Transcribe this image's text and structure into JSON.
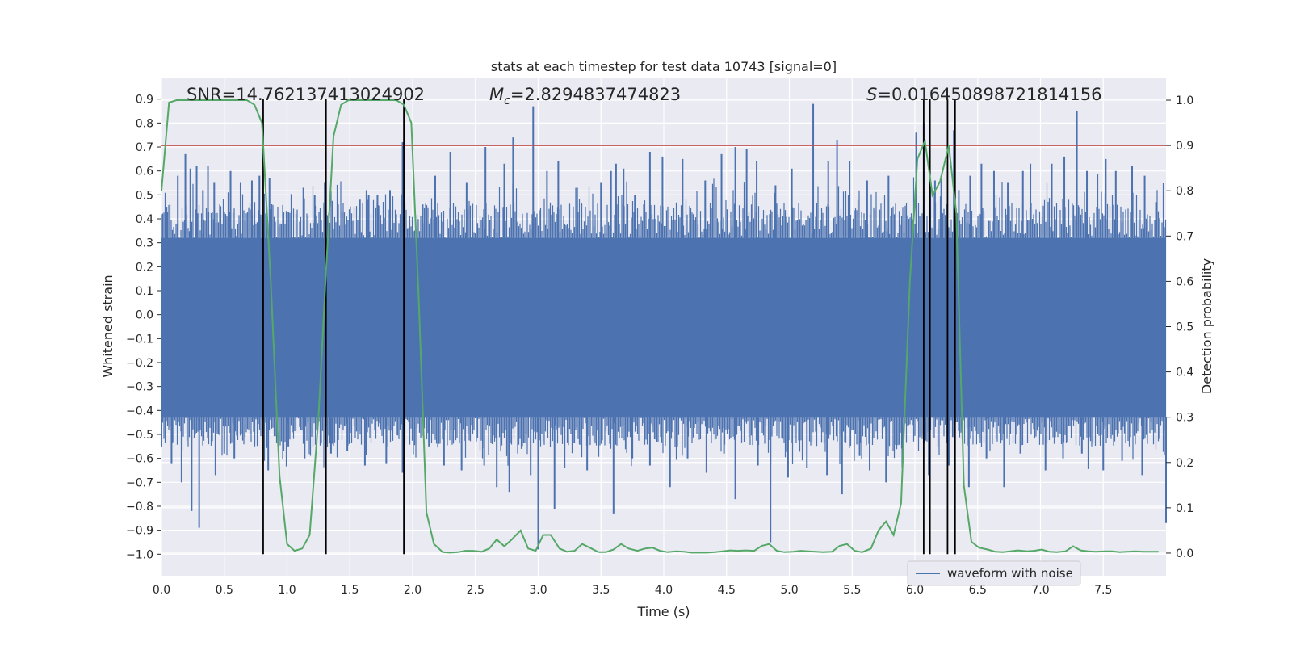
{
  "chart_data": {
    "type": "line",
    "title": "stats at each timestep for test data 10743 [signal=0]",
    "xlabel": "Time (s)",
    "ylabel": "Whitened strain",
    "y2label": "Detection probability",
    "xlim": [
      0.0,
      8.0
    ],
    "ylim": [
      -1.09,
      0.99
    ],
    "y2lim": [
      -0.05,
      1.05
    ],
    "xticks": [
      0.0,
      0.5,
      1.0,
      1.5,
      2.0,
      2.5,
      3.0,
      3.5,
      4.0,
      4.5,
      5.0,
      5.5,
      6.0,
      6.5,
      7.0,
      7.5
    ],
    "xtick_labels": [
      "0.0",
      "0.5",
      "1.0",
      "1.5",
      "2.0",
      "2.5",
      "3.0",
      "3.5",
      "4.0",
      "4.5",
      "5.0",
      "5.5",
      "6.0",
      "6.5",
      "7.0",
      "7.5"
    ],
    "yticks": [
      -1.0,
      -0.9,
      -0.8,
      -0.7,
      -0.6,
      -0.5,
      -0.4,
      -0.3,
      -0.2,
      -0.1,
      0.0,
      0.1,
      0.2,
      0.3,
      0.4,
      0.5,
      0.6,
      0.7,
      0.8,
      0.9
    ],
    "ytick_labels": [
      "−1.0",
      "−0.9",
      "−0.8",
      "−0.7",
      "−0.6",
      "−0.5",
      "−0.4",
      "−0.3",
      "−0.2",
      "−0.1",
      "0.0",
      "0.1",
      "0.2",
      "0.3",
      "0.4",
      "0.5",
      "0.6",
      "0.7",
      "0.8",
      "0.9"
    ],
    "y2ticks": [
      0.0,
      0.1,
      0.2,
      0.3,
      0.4,
      0.5,
      0.6,
      0.7,
      0.8,
      0.9,
      1.0
    ],
    "y2tick_labels": [
      "0.0",
      "0.1",
      "0.2",
      "0.3",
      "0.4",
      "0.5",
      "0.6",
      "0.7",
      "0.8",
      "0.9",
      "1.0"
    ],
    "threshold": {
      "axis": "y2",
      "value": 0.9,
      "color": "#c44e52"
    },
    "vlines": [
      0.81,
      1.31,
      1.93,
      6.07,
      6.12,
      6.26,
      6.32
    ],
    "vline_range": [
      -1.0,
      0.9
    ],
    "waveform": {
      "name": "waveform with noise",
      "color": "#4c72b0",
      "band": [
        -0.43,
        0.32
      ],
      "peaks": [
        [
          0.04,
          0.45
        ],
        [
          0.13,
          0.58
        ],
        [
          0.19,
          0.67
        ],
        [
          0.23,
          0.61
        ],
        [
          0.28,
          0.62
        ],
        [
          0.33,
          0.52
        ],
        [
          0.37,
          0.62
        ],
        [
          0.42,
          0.55
        ],
        [
          0.55,
          0.6
        ],
        [
          0.63,
          0.55
        ],
        [
          0.72,
          0.56
        ],
        [
          0.78,
          0.58
        ],
        [
          0.86,
          0.57
        ],
        [
          1.13,
          0.53
        ],
        [
          1.22,
          0.5
        ],
        [
          1.3,
          0.55
        ],
        [
          1.58,
          0.48
        ],
        [
          1.65,
          0.5
        ],
        [
          1.72,
          0.5
        ],
        [
          1.82,
          0.52
        ],
        [
          1.92,
          0.72
        ],
        [
          2.08,
          0.46
        ],
        [
          2.18,
          0.58
        ],
        [
          2.3,
          0.68
        ],
        [
          2.43,
          0.55
        ],
        [
          2.58,
          0.7
        ],
        [
          2.73,
          0.63
        ],
        [
          2.8,
          0.74
        ],
        [
          2.96,
          0.87
        ],
        [
          3.07,
          0.6
        ],
        [
          3.16,
          0.64
        ],
        [
          3.31,
          0.53
        ],
        [
          3.5,
          0.55
        ],
        [
          3.58,
          0.6
        ],
        [
          3.62,
          0.63
        ],
        [
          3.68,
          0.61
        ],
        [
          3.77,
          0.5
        ],
        [
          3.89,
          0.68
        ],
        [
          3.99,
          0.66
        ],
        [
          4.15,
          0.65
        ],
        [
          4.33,
          0.56
        ],
        [
          4.46,
          0.67
        ],
        [
          4.57,
          0.7
        ],
        [
          4.66,
          0.69
        ],
        [
          4.74,
          0.64
        ],
        [
          4.89,
          0.54
        ],
        [
          5.02,
          0.61
        ],
        [
          5.19,
          0.88
        ],
        [
          5.31,
          0.64
        ],
        [
          5.38,
          0.73
        ],
        [
          5.48,
          0.64
        ],
        [
          5.62,
          0.56
        ],
        [
          5.79,
          0.58
        ],
        [
          6.01,
          0.76
        ],
        [
          6.07,
          0.8
        ],
        [
          6.16,
          0.56
        ],
        [
          6.21,
          0.58
        ],
        [
          6.31,
          0.77
        ],
        [
          6.35,
          0.52
        ],
        [
          6.44,
          0.58
        ],
        [
          6.53,
          0.63
        ],
        [
          6.63,
          0.6
        ],
        [
          6.74,
          0.55
        ],
        [
          6.86,
          0.6
        ],
        [
          6.92,
          0.63
        ],
        [
          7.09,
          0.63
        ],
        [
          7.19,
          0.66
        ],
        [
          7.29,
          0.85
        ],
        [
          7.37,
          0.6
        ],
        [
          7.52,
          0.65
        ],
        [
          7.6,
          0.6
        ],
        [
          7.73,
          0.62
        ],
        [
          7.83,
          0.58
        ],
        [
          7.92,
          0.47
        ]
      ],
      "troughs": [
        [
          0.0,
          -0.55
        ],
        [
          0.08,
          -0.62
        ],
        [
          0.16,
          -0.7
        ],
        [
          0.24,
          -0.82
        ],
        [
          0.3,
          -0.89
        ],
        [
          0.43,
          -0.67
        ],
        [
          0.5,
          -0.58
        ],
        [
          0.58,
          -0.6
        ],
        [
          0.74,
          -0.55
        ],
        [
          0.85,
          -0.65
        ],
        [
          1.01,
          -0.55
        ],
        [
          1.14,
          -0.6
        ],
        [
          1.35,
          -0.58
        ],
        [
          1.48,
          -0.57
        ],
        [
          1.62,
          -0.63
        ],
        [
          1.79,
          -0.62
        ],
        [
          1.92,
          -0.66
        ],
        [
          2.13,
          -0.55
        ],
        [
          2.25,
          -0.63
        ],
        [
          2.39,
          -0.65
        ],
        [
          2.57,
          -0.63
        ],
        [
          2.67,
          -0.72
        ],
        [
          2.77,
          -0.74
        ],
        [
          2.94,
          -0.67
        ],
        [
          3.0,
          -0.98
        ],
        [
          3.13,
          -0.81
        ],
        [
          3.21,
          -0.64
        ],
        [
          3.39,
          -0.65
        ],
        [
          3.6,
          -0.83
        ],
        [
          3.75,
          -0.6
        ],
        [
          3.89,
          -0.63
        ],
        [
          4.05,
          -0.72
        ],
        [
          4.19,
          -0.6
        ],
        [
          4.34,
          -0.66
        ],
        [
          4.48,
          -0.58
        ],
        [
          4.57,
          -0.77
        ],
        [
          4.75,
          -0.63
        ],
        [
          4.85,
          -0.95
        ],
        [
          4.99,
          -0.68
        ],
        [
          5.14,
          -0.64
        ],
        [
          5.3,
          -0.67
        ],
        [
          5.42,
          -0.75
        ],
        [
          5.56,
          -0.59
        ],
        [
          5.64,
          -0.65
        ],
        [
          5.77,
          -0.7
        ],
        [
          5.9,
          -0.64
        ],
        [
          6.11,
          -0.67
        ],
        [
          6.27,
          -0.63
        ],
        [
          6.43,
          -0.72
        ],
        [
          6.57,
          -0.6
        ],
        [
          6.71,
          -0.72
        ],
        [
          6.84,
          -0.58
        ],
        [
          7.04,
          -0.65
        ],
        [
          7.18,
          -0.6
        ],
        [
          7.33,
          -0.58
        ],
        [
          7.5,
          -0.65
        ],
        [
          7.65,
          -0.61
        ],
        [
          7.81,
          -0.67
        ],
        [
          8.0,
          -0.87
        ]
      ]
    },
    "probability": {
      "color": "#55a868",
      "x": [
        0.0,
        0.06,
        0.12,
        0.68,
        0.74,
        0.8,
        0.87,
        0.94,
        1.0,
        1.06,
        1.12,
        1.18,
        1.25,
        1.31,
        1.37,
        1.43,
        1.49,
        1.56,
        1.62,
        1.87,
        1.93,
        1.99,
        2.05,
        2.11,
        2.17,
        2.24,
        2.3,
        2.36,
        2.42,
        2.48,
        2.55,
        2.61,
        2.67,
        2.73,
        2.79,
        2.86,
        2.92,
        2.98,
        3.04,
        3.1,
        3.17,
        3.23,
        3.29,
        3.35,
        3.41,
        3.48,
        3.54,
        3.6,
        3.66,
        3.72,
        3.79,
        3.85,
        3.91,
        3.97,
        4.03,
        4.1,
        4.16,
        4.22,
        4.28,
        4.34,
        4.41,
        4.47,
        4.53,
        4.59,
        4.65,
        4.72,
        4.78,
        4.84,
        4.9,
        4.96,
        5.03,
        5.09,
        5.15,
        5.21,
        5.27,
        5.34,
        5.4,
        5.46,
        5.52,
        5.58,
        5.65,
        5.71,
        5.77,
        5.83,
        5.89,
        5.96,
        6.02,
        6.08,
        6.14,
        6.2,
        6.27,
        6.33,
        6.39,
        6.45,
        6.51,
        6.58,
        6.64,
        6.7,
        6.76,
        6.82,
        6.89,
        6.95,
        7.01,
        7.07,
        7.13,
        7.2,
        7.26,
        7.32,
        7.38,
        7.44,
        7.51,
        7.57,
        7.63,
        7.69,
        7.75,
        7.82,
        7.88,
        7.94
      ],
      "y": [
        0.8,
        0.995,
        1.0,
        1.0,
        0.99,
        0.95,
        0.6,
        0.17,
        0.02,
        0.005,
        0.01,
        0.04,
        0.3,
        0.62,
        0.92,
        0.99,
        1.0,
        1.0,
        1.0,
        1.0,
        0.99,
        0.95,
        0.55,
        0.09,
        0.02,
        0.002,
        0.001,
        0.002,
        0.005,
        0.005,
        0.003,
        0.01,
        0.03,
        0.015,
        0.03,
        0.05,
        0.01,
        0.005,
        0.04,
        0.04,
        0.01,
        0.003,
        0.005,
        0.02,
        0.012,
        0.002,
        0.002,
        0.008,
        0.02,
        0.01,
        0.005,
        0.01,
        0.012,
        0.005,
        0.002,
        0.004,
        0.003,
        0.001,
        0.001,
        0.001,
        0.002,
        0.004,
        0.006,
        0.005,
        0.006,
        0.005,
        0.016,
        0.02,
        0.005,
        0.002,
        0.003,
        0.005,
        0.004,
        0.003,
        0.002,
        0.003,
        0.016,
        0.02,
        0.005,
        0.002,
        0.01,
        0.05,
        0.07,
        0.04,
        0.11,
        0.6,
        0.87,
        0.91,
        0.79,
        0.82,
        0.9,
        0.75,
        0.15,
        0.025,
        0.012,
        0.008,
        0.003,
        0.002,
        0.004,
        0.006,
        0.004,
        0.005,
        0.008,
        0.003,
        0.002,
        0.004,
        0.015,
        0.006,
        0.004,
        0.003,
        0.004,
        0.004,
        0.002,
        0.003,
        0.004,
        0.003,
        0.003,
        0.003
      ]
    },
    "annotations": {
      "snr": "SNR=14.762137413024902",
      "mc_symbol": "M",
      "mc_sub": "c",
      "mc_value": "=2.8294837474823",
      "s_symbol": "S",
      "s_value": "=0.016450898721814156"
    },
    "legend": {
      "entries": [
        "waveform with noise"
      ],
      "location": "lower-right"
    }
  }
}
